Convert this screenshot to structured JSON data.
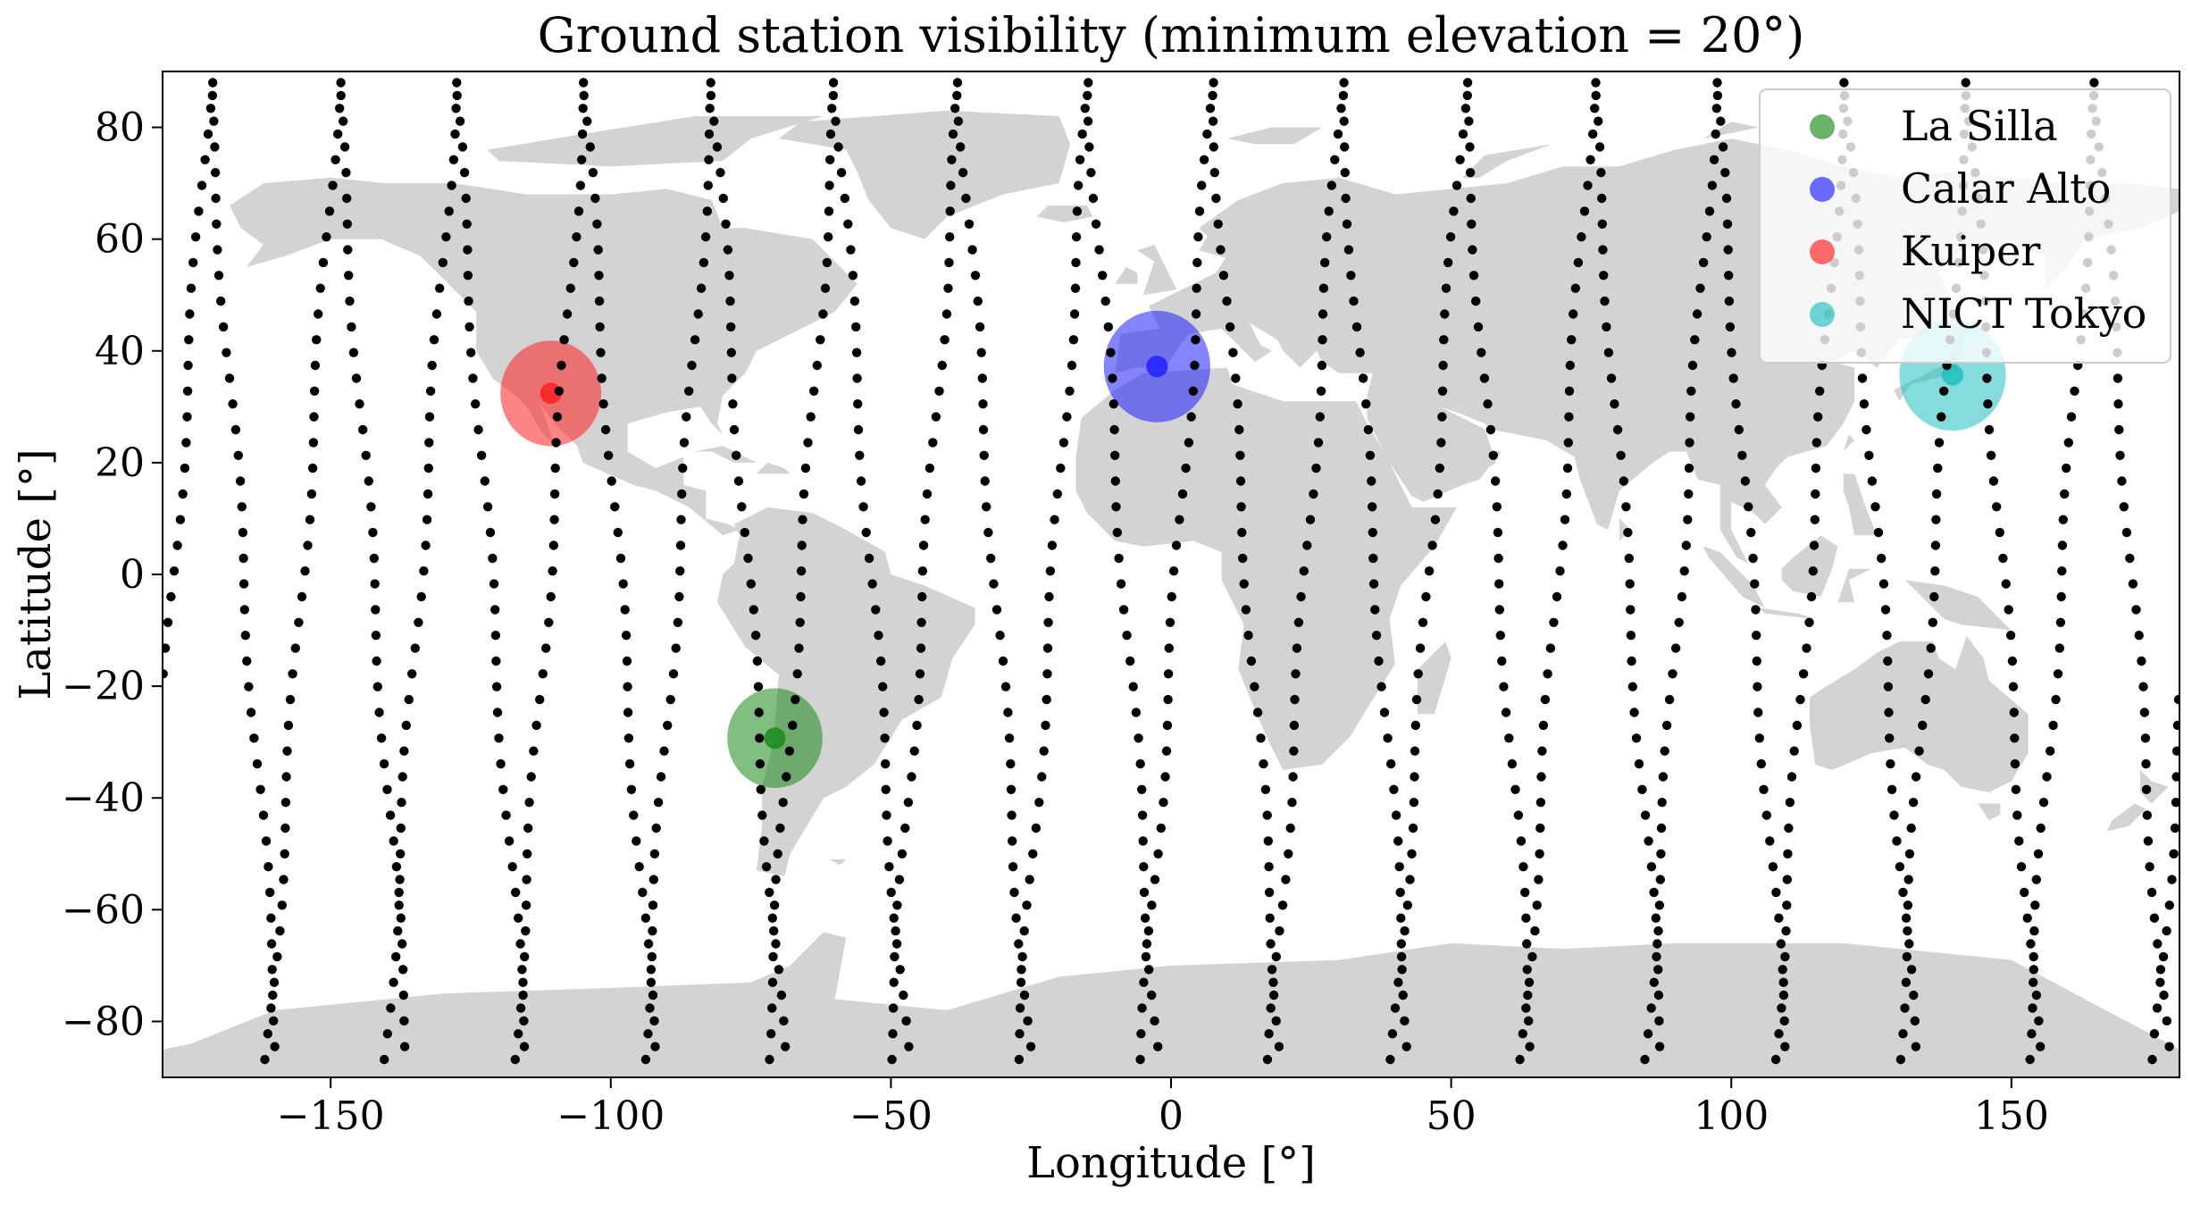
{
  "chart_data": {
    "type": "scatter",
    "title": "Ground station visibility (minimum elevation = 20°)",
    "xlabel": "Longitude [°]",
    "ylabel": "Latitude [°]",
    "xlim": [
      -180,
      180
    ],
    "ylim": [
      -90,
      90
    ],
    "xticks": [
      -150,
      -100,
      -50,
      0,
      50,
      100,
      150
    ],
    "yticks": [
      -80,
      -60,
      -40,
      -20,
      0,
      20,
      40,
      60,
      80
    ],
    "xtick_labels": [
      "−150",
      "−100",
      "−50",
      "0",
      "50",
      "100",
      "150"
    ],
    "ytick_labels": [
      "−80",
      "−60",
      "−40",
      "−20",
      "0",
      "20",
      "40",
      "60",
      "80"
    ],
    "grid": false,
    "legend_position": "top-right",
    "background_map": "world landmasses (light gray)",
    "land_color": "#d3d3d3",
    "track_color": "#000000",
    "stations": [
      {
        "name": "La Silla",
        "lon": -70.7,
        "lat": -29.3,
        "visibility_radius_deg": 8.5,
        "color": "#1a8a1a"
      },
      {
        "name": "Calar Alto",
        "lon": -2.5,
        "lat": 37.2,
        "visibility_radius_deg": 9.5,
        "color": "#1f1fff"
      },
      {
        "name": "Kuiper",
        "lon": -110.7,
        "lat": 32.4,
        "visibility_radius_deg": 9.0,
        "color": "#ff2020"
      },
      {
        "name": "NICT Tokyo",
        "lon": 139.5,
        "lat": 35.7,
        "visibility_radius_deg": 9.5,
        "color": "#20c0c0"
      }
    ],
    "ground_track": {
      "description": "satellite sub-satellite points (sampled), one per 2 minutes along ~16 descending and ascending passes",
      "pass_crossing_longitudes": [
        -178,
        -155,
        -134,
        -111,
        -88,
        -66,
        -44,
        -21,
        1,
        24,
        46,
        69,
        91,
        114,
        136,
        159
      ],
      "inclination_deg": 97.5,
      "point_spacing_deg_lat": 4.6
    }
  }
}
